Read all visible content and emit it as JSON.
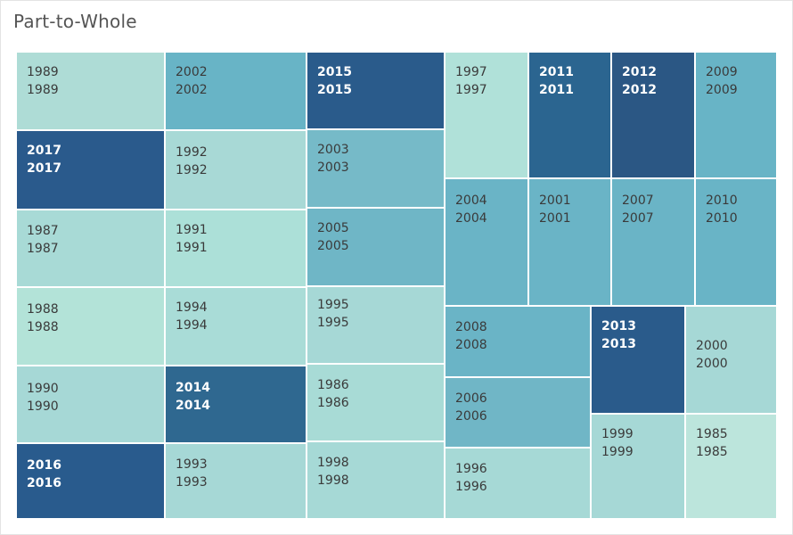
{
  "title": "Part-to-Whole",
  "chart_data": {
    "type": "treemap",
    "title": "Part-to-Whole",
    "cells": [
      {
        "label": "1989",
        "value": "1989",
        "color": "#aedcd6"
      },
      {
        "label": "2017",
        "value": "2017",
        "color": "#2a5a8c"
      },
      {
        "label": "1987",
        "value": "1987",
        "color": "#a8dad6"
      },
      {
        "label": "1988",
        "value": "1988",
        "color": "#b3e3d8"
      },
      {
        "label": "1990",
        "value": "1990",
        "color": "#a6d8d6"
      },
      {
        "label": "2016",
        "value": "2016",
        "color": "#295b8d"
      },
      {
        "label": "2002",
        "value": "2002",
        "color": "#68b4c6"
      },
      {
        "label": "1992",
        "value": "1992",
        "color": "#a8d9d6"
      },
      {
        "label": "1991",
        "value": "1991",
        "color": "#ace0d8"
      },
      {
        "label": "1994",
        "value": "1994",
        "color": "#a9dcd7"
      },
      {
        "label": "2014",
        "value": "2014",
        "color": "#2f6890"
      },
      {
        "label": "1993",
        "value": "1993",
        "color": "#a6d8d6"
      },
      {
        "label": "2015",
        "value": "2015",
        "color": "#2a5b8b"
      },
      {
        "label": "2003",
        "value": "2003",
        "color": "#76bac8"
      },
      {
        "label": "2005",
        "value": "2005",
        "color": "#6fb6c6"
      },
      {
        "label": "1995",
        "value": "1995",
        "color": "#a6d8d6"
      },
      {
        "label": "1986",
        "value": "1986",
        "color": "#a8dbd6"
      },
      {
        "label": "1998",
        "value": "1998",
        "color": "#a6d9d6"
      },
      {
        "label": "1997",
        "value": "1997",
        "color": "#b0e1d9"
      },
      {
        "label": "2011",
        "value": "2011",
        "color": "#2b6590"
      },
      {
        "label": "2012",
        "value": "2012",
        "color": "#2b5784"
      },
      {
        "label": "2009",
        "value": "2009",
        "color": "#68b4c6"
      },
      {
        "label": "2004",
        "value": "2004",
        "color": "#6ab4c6"
      },
      {
        "label": "2001",
        "value": "2001",
        "color": "#6ab4c6"
      },
      {
        "label": "2007",
        "value": "2007",
        "color": "#6ab4c6"
      },
      {
        "label": "2010",
        "value": "2010",
        "color": "#69b4c6"
      },
      {
        "label": "2008",
        "value": "2008",
        "color": "#6ab4c6"
      },
      {
        "label": "2013",
        "value": "2013",
        "color": "#2a5b8b"
      },
      {
        "label": "2000",
        "value": "2000",
        "color": "#a6d8d6"
      },
      {
        "label": "2006",
        "value": "2006",
        "color": "#70b6c6"
      },
      {
        "label": "1996",
        "value": "1996",
        "color": "#a6d9d6"
      },
      {
        "label": "1999",
        "value": "1999",
        "color": "#a6d8d6"
      },
      {
        "label": "1985",
        "value": "1985",
        "color": "#bce5dc"
      }
    ]
  }
}
